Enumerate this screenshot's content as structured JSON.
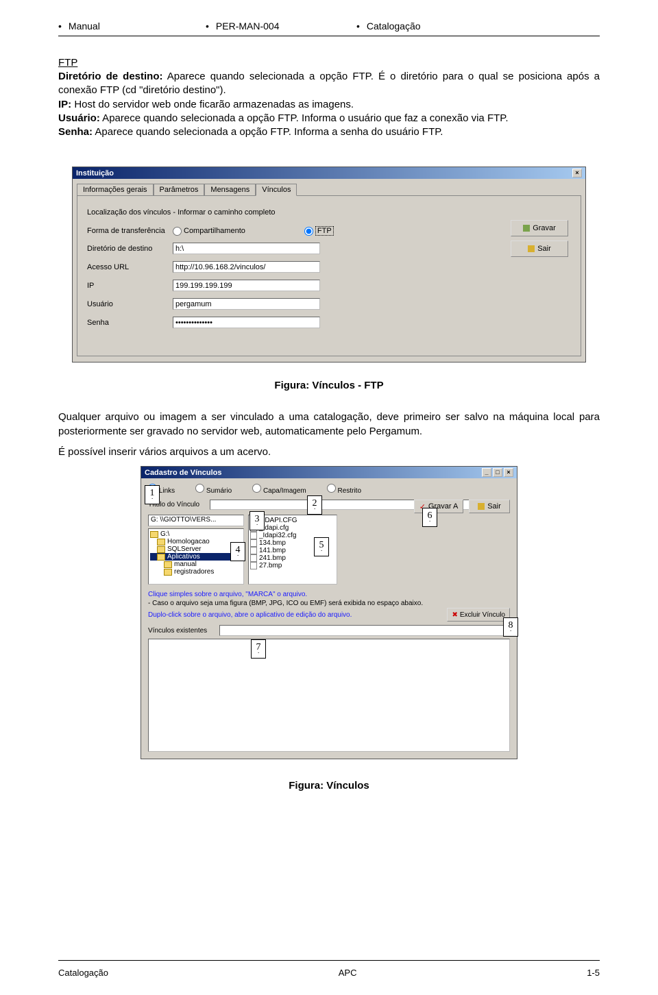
{
  "header": {
    "col1": "Manual",
    "col2": "PER-MAN-004",
    "col3": "Catalogação",
    "bullet": "•"
  },
  "section_title": "FTP",
  "defs": {
    "dir_label": "Diretório de destino:",
    "dir_text": " Aparece quando selecionada a opção FTP. É o diretório para o qual se posiciona após a conexão FTP (cd \"diretório destino\").",
    "ip_label": "IP:",
    "ip_text": " Host do servidor web onde ficarão armazenadas as imagens.",
    "usr_label": "Usuário:",
    "usr_text": " Aparece quando selecionada a opção FTP. Informa o usuário que faz a conexão via FTP.",
    "sen_label": "Senha:",
    "sen_text": " Aparece quando selecionada a opção FTP. Informa a senha do usuário FTP."
  },
  "win1": {
    "title": "Instituição",
    "tabs": [
      "Informações gerais",
      "Parâmetros",
      "Mensagens",
      "Vínculos"
    ],
    "caption": "Localização dos vínculos - Informar o caminho completo",
    "rows": {
      "forma": "Forma de transferência",
      "r_comp": "Compartilhamento",
      "r_ftp": "FTP",
      "dir": "Diretório de destino",
      "dir_val": "h:\\",
      "url": "Acesso URL",
      "url_val": "http://10.96.168.2/vinculos/",
      "ip": "IP",
      "ip_val": "199.199.199.199",
      "usr": "Usuário",
      "usr_val": "pergamum",
      "sen": "Senha",
      "sen_val": "••••••••••••••"
    },
    "btn_gravar": "Gravar",
    "btn_sair": "Sair"
  },
  "fig1_caption": "Figura: Vínculos - FTP",
  "para2": "Qualquer arquivo ou imagem a ser vinculado a uma catalogação, deve primeiro ser salvo na máquina local para posteriormente ser gravado no servidor web, automaticamente pelo Pergamum.",
  "para3": "É possível inserir vários arquivos a um acervo.",
  "win2": {
    "title": "Cadastro de Vínculos",
    "opts": {
      "links": "Links",
      "sumario": "Sumário",
      "capa": "Capa/Imagem",
      "restrito": "Restrito"
    },
    "tit_label": "Título do Vínculo",
    "drive": "G: \\\\GIOTTO\\VERS...",
    "folders": [
      "G:\\",
      "Homologacao",
      "SQLServer",
      "Aplicativos",
      "manual",
      "registradores"
    ],
    "selected_folder_index": 3,
    "files": [
      "_IDAPI.CFG",
      "_Idapi.cfg",
      "_Idapi32.cfg",
      "134.bmp",
      "141.bmp",
      "241.bmp",
      "27.bmp"
    ],
    "gravar": "Gravar A",
    "sair": "Sair",
    "instr1": "Clique simples sobre o arquivo, \"MARCA\" o arquivo.",
    "instr2": "- Caso o arquivo seja uma figura (BMP, JPG, ICO ou EMF) será exibida no espaço abaixo.",
    "instr3": "Duplo-click sobre o arquivo, abre o aplicativo de edição do arquivo.",
    "excluir": "Excluir Vínculo",
    "vex": "Vínculos existentes"
  },
  "badges": {
    "b1": "1",
    "b2": "2",
    "b3": "3",
    "b4": "4",
    "b5": "5",
    "b6": "6",
    "b7": "7",
    "b8": "8"
  },
  "fig2_caption": "Figura: Vínculos",
  "footer": {
    "left": "Catalogação",
    "mid": "APC",
    "right": "1-5"
  },
  "colors": {
    "win_bg": "#d4d0c8",
    "title_grad_a": "#0a246a",
    "title_grad_b": "#a6caf0",
    "link_blue": "#1a1aff"
  }
}
